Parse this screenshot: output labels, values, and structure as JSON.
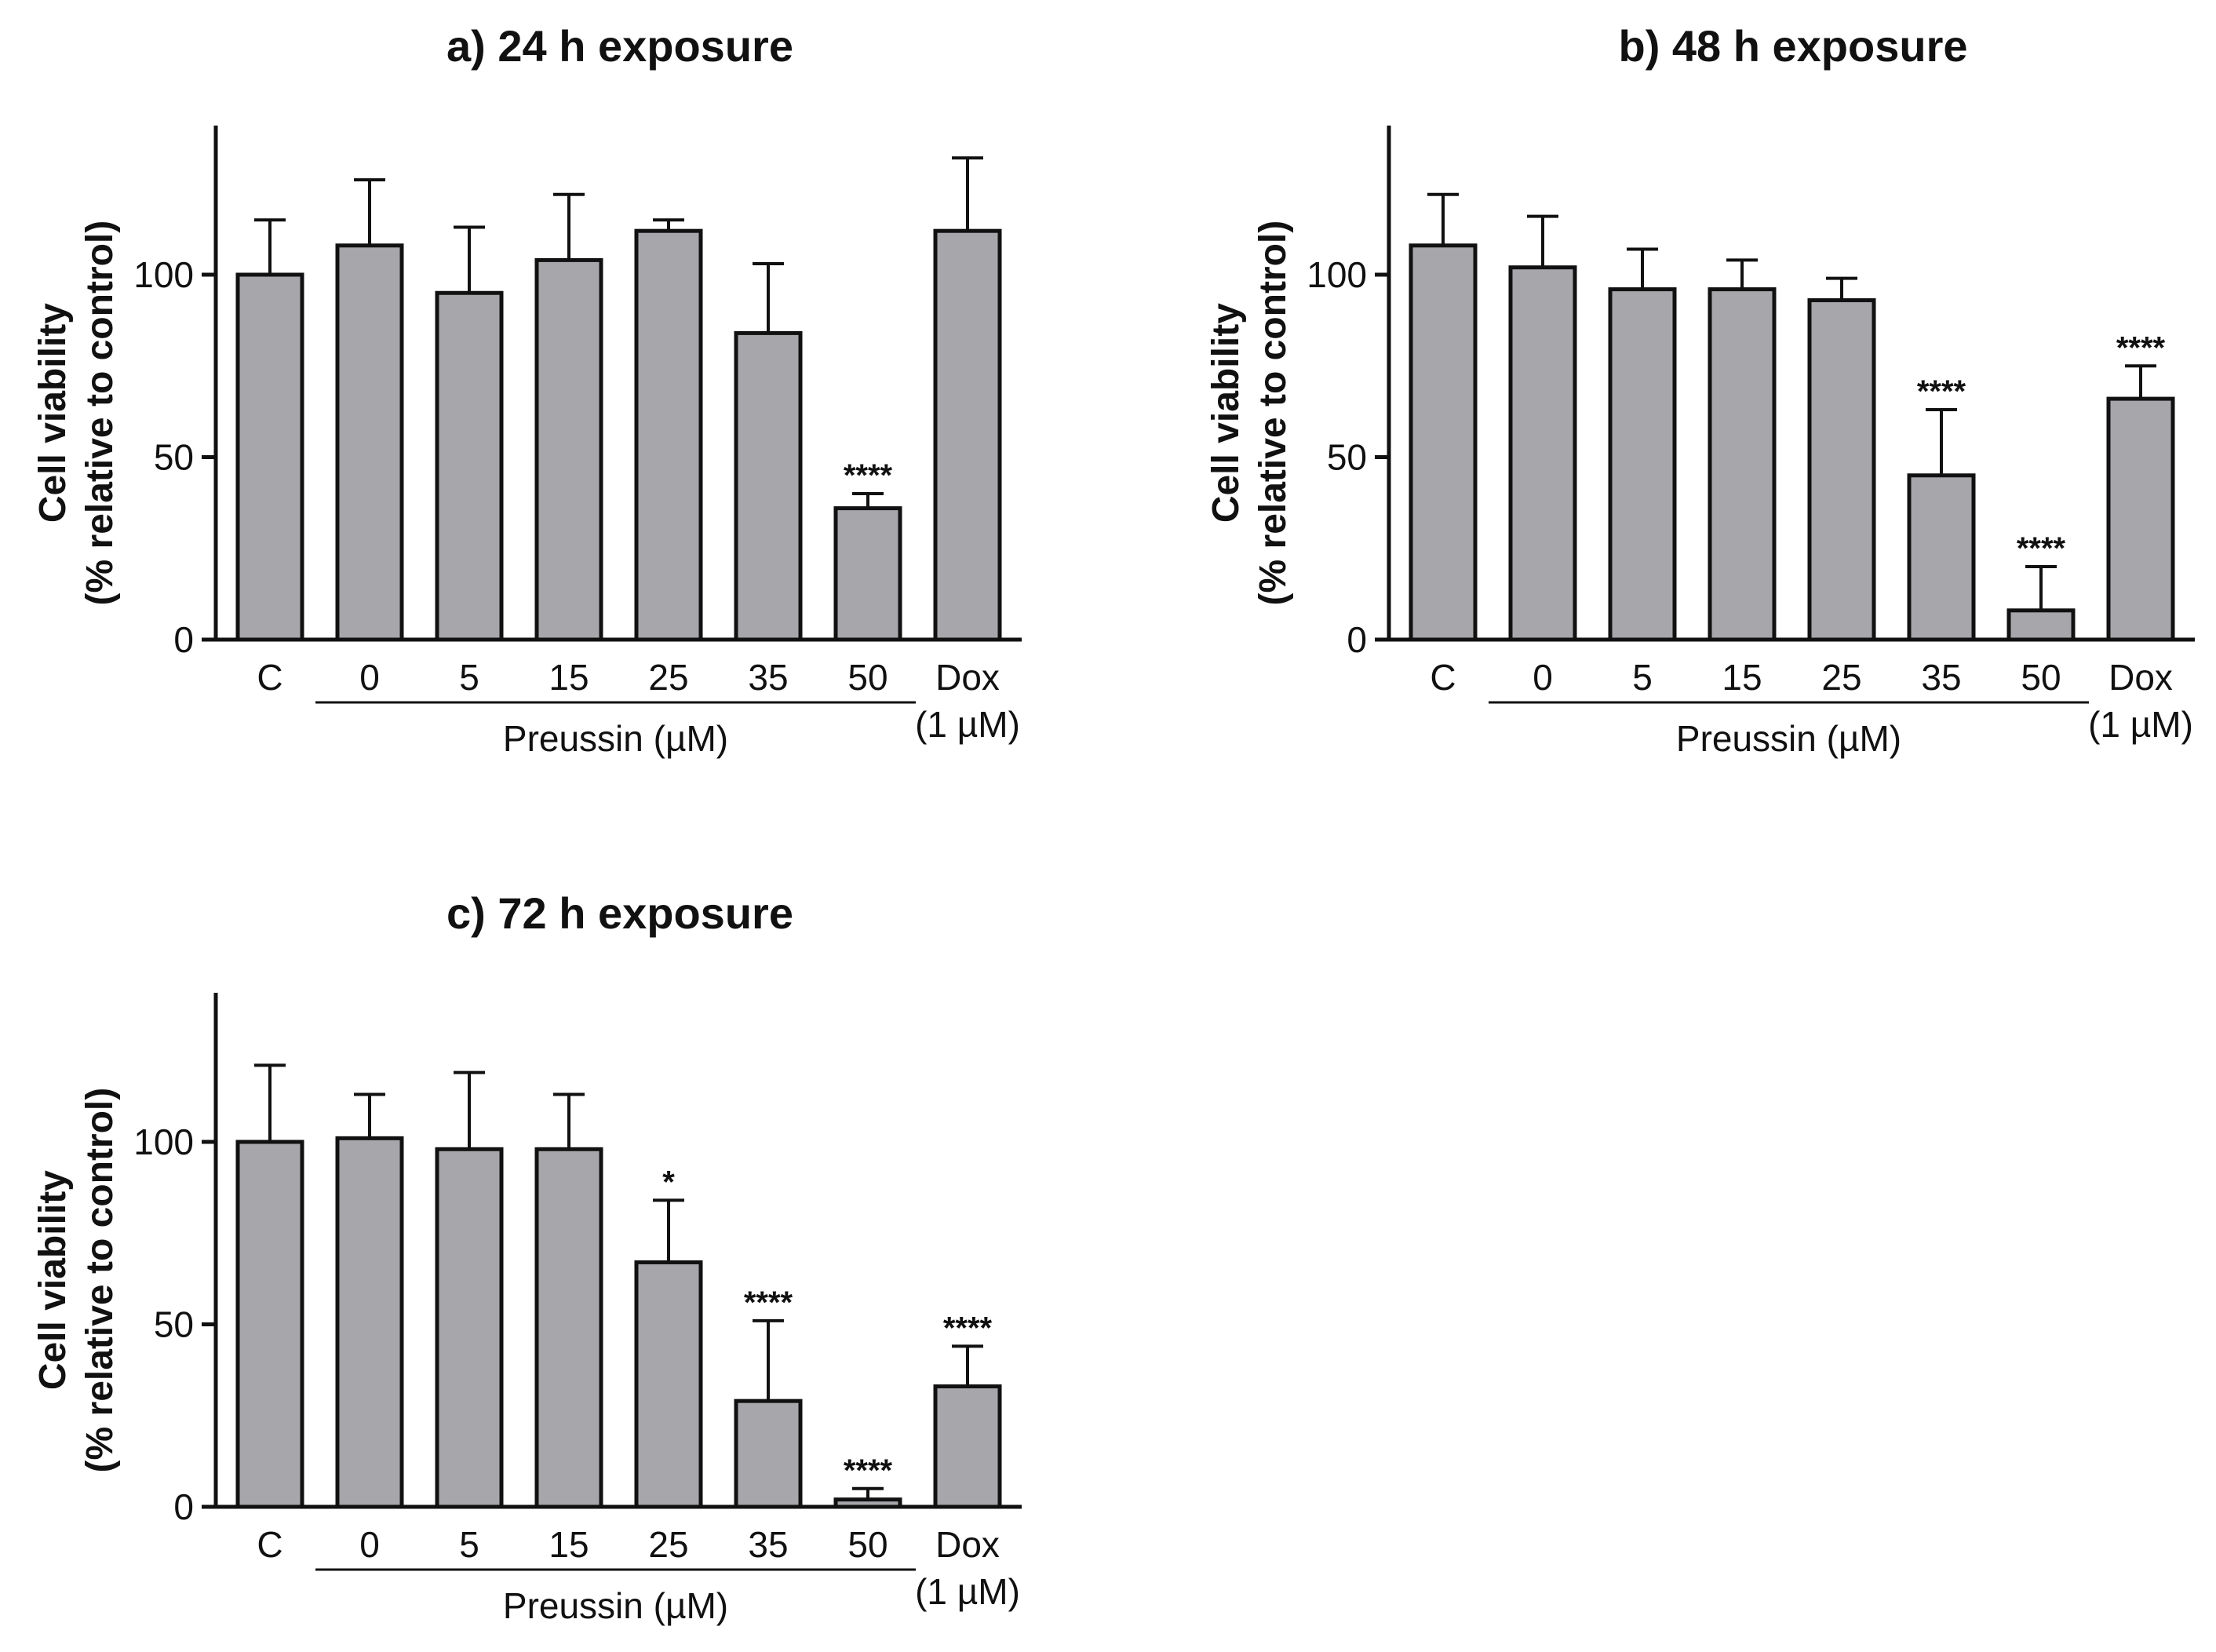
{
  "chart_data": [
    {
      "type": "bar",
      "title": "a) 24 h exposure",
      "ylabel_line1": "Cell viability",
      "ylabel_line2": "(% relative to control)",
      "ylim": [
        0,
        140
      ],
      "yticks": [
        0,
        50,
        100
      ],
      "categories": [
        "C",
        "0",
        "5",
        "15",
        "25",
        "35",
        "50",
        "Dox"
      ],
      "dox_sublabel": "(1 µM)",
      "group_label": "Preussin (µM)",
      "values": [
        100,
        108,
        95,
        104,
        112,
        84,
        36,
        112
      ],
      "errors": [
        15,
        18,
        18,
        18,
        3,
        19,
        4,
        20
      ],
      "significance": [
        "",
        "",
        "",
        "",
        "",
        "",
        "****",
        ""
      ],
      "bar_color": "#a7a6ab"
    },
    {
      "type": "bar",
      "title": "b) 48 h exposure",
      "ylabel_line1": "Cell viability",
      "ylabel_line2": "(% relative to control)",
      "ylim": [
        0,
        140
      ],
      "yticks": [
        0,
        50,
        100
      ],
      "categories": [
        "C",
        "0",
        "5",
        "15",
        "25",
        "35",
        "50",
        "Dox"
      ],
      "dox_sublabel": "(1 µM)",
      "group_label": "Preussin (µM)",
      "values": [
        108,
        102,
        96,
        96,
        93,
        45,
        8,
        66
      ],
      "errors": [
        14,
        14,
        11,
        8,
        6,
        18,
        12,
        9
      ],
      "significance": [
        "",
        "",
        "",
        "",
        "",
        "****",
        "****",
        "****"
      ],
      "bar_color": "#a7a6ab"
    },
    {
      "type": "bar",
      "title": "c) 72 h exposure",
      "ylabel_line1": "Cell viability",
      "ylabel_line2": "(% relative to control)",
      "ylim": [
        0,
        140
      ],
      "yticks": [
        0,
        50,
        100
      ],
      "categories": [
        "C",
        "0",
        "5",
        "15",
        "25",
        "35",
        "50",
        "Dox"
      ],
      "dox_sublabel": "(1 µM)",
      "group_label": "Preussin (µM)",
      "values": [
        100,
        101,
        98,
        98,
        67,
        29,
        2,
        33
      ],
      "errors": [
        21,
        12,
        21,
        15,
        17,
        22,
        3,
        11
      ],
      "significance": [
        "",
        "",
        "",
        "",
        "*",
        "****",
        "****",
        "****"
      ],
      "bar_color": "#a7a6ab"
    }
  ]
}
